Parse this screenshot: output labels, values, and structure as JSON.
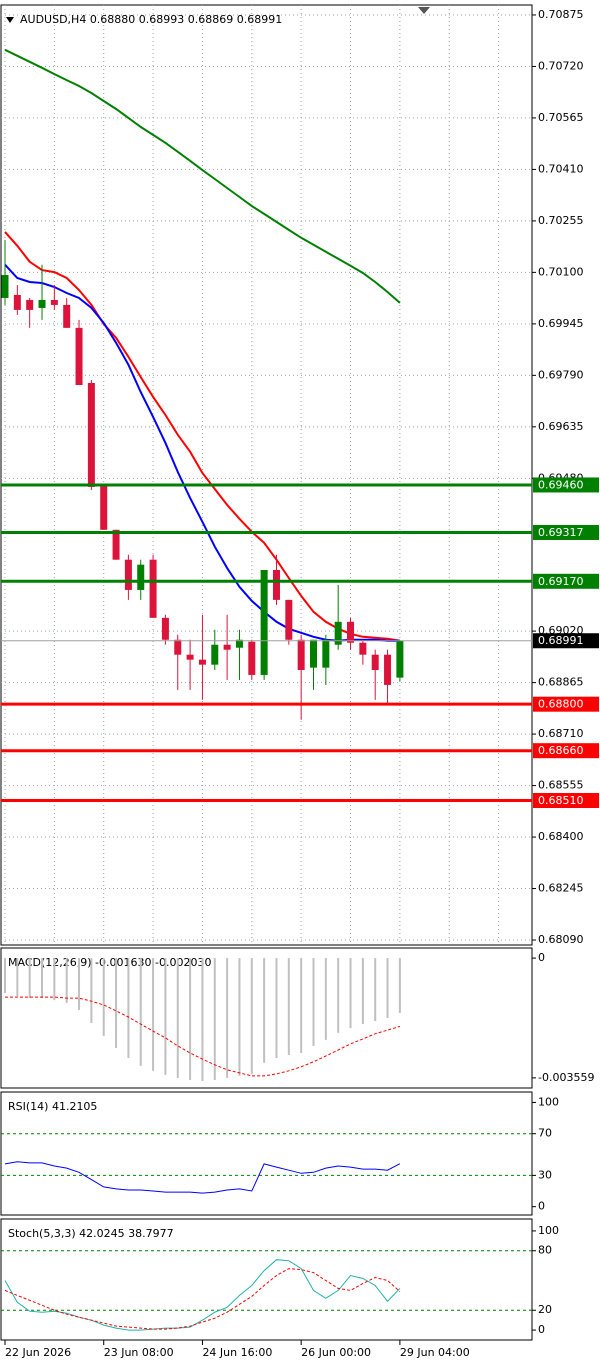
{
  "chart_data": [
    {
      "type": "candlestick",
      "title": "AUDUSD,H4  0.68880 0.68993 0.68869 0.68991",
      "x": [
        "22 Jun 2026",
        null,
        null,
        null,
        null,
        null,
        null,
        null,
        "23 Jun 08:00",
        null,
        null,
        null,
        null,
        null,
        null,
        null,
        "24 Jun 16:00",
        null,
        null,
        null,
        null,
        null,
        null,
        null,
        "26 Jun 00:00",
        null,
        null,
        null,
        null,
        null,
        null,
        null,
        "29 Jun 04:00"
      ],
      "open": [
        0.70023,
        0.70032,
        0.70017,
        0.69993,
        0.70017,
        0.70002,
        0.69933,
        0.69767,
        0.6946,
        0.69325,
        0.69235,
        0.69144,
        0.69235,
        0.6906,
        0.68994,
        0.68949,
        0.68934,
        0.68919,
        0.68979,
        0.6897,
        0.68988,
        0.68888,
        0.69204,
        0.69114,
        0.68994,
        0.6891,
        0.6891,
        0.68979,
        0.69048,
        0.68985,
        0.68949,
        0.68949,
        0.6888
      ],
      "high": [
        0.70198,
        0.70062,
        0.70023,
        0.70123,
        0.70062,
        0.70023,
        0.69957,
        0.69776,
        0.6946,
        0.69325,
        0.6925,
        0.69235,
        0.6925,
        0.69069,
        0.69009,
        0.68994,
        0.69069,
        0.69024,
        0.69069,
        0.69024,
        0.68994,
        0.69204,
        0.6925,
        0.69114,
        0.69009,
        0.68994,
        0.69009,
        0.69159,
        0.6906,
        0.68994,
        0.68964,
        0.68964,
        0.68993
      ],
      "low": [
        0.70002,
        0.69972,
        0.69933,
        0.69957,
        0.69987,
        0.69933,
        0.69761,
        0.69445,
        0.69325,
        0.69235,
        0.69114,
        0.69114,
        0.6906,
        0.68979,
        0.68843,
        0.68843,
        0.68813,
        0.68903,
        0.68873,
        0.68873,
        0.68873,
        0.68873,
        0.69099,
        0.68979,
        0.68753,
        0.68843,
        0.68858,
        0.68964,
        0.68964,
        0.68919,
        0.68813,
        0.68804,
        0.68869
      ],
      "close": [
        0.70092,
        0.69987,
        0.69987,
        0.70017,
        0.70002,
        0.69933,
        0.69761,
        0.69454,
        0.69325,
        0.69235,
        0.69144,
        0.6922,
        0.6906,
        0.68994,
        0.68949,
        0.68934,
        0.68919,
        0.68979,
        0.68964,
        0.68994,
        0.68888,
        0.69204,
        0.69114,
        0.68994,
        0.68903,
        0.68994,
        0.68994,
        0.69048,
        0.68985,
        0.68949,
        0.68903,
        0.68858,
        0.68991
      ],
      "up_color": "#008000",
      "down_color": "#dc143c",
      "lines": [
        {
          "color": "#008000",
          "values": [
            0.7077,
            0.70752,
            0.70734,
            0.70716,
            0.70697,
            0.70679,
            0.70661,
            0.7064,
            0.70616,
            0.70592,
            0.70565,
            0.70538,
            0.70514,
            0.7049,
            0.70463,
            0.70436,
            0.70408,
            0.70381,
            0.70354,
            0.70327,
            0.703,
            0.70276,
            0.70252,
            0.70228,
            0.70204,
            0.70183,
            0.70162,
            0.70141,
            0.7012,
            0.70098,
            0.70071,
            0.70041,
            0.70008
          ]
        },
        {
          "color": "#ff0000",
          "values": [
            0.70222,
            0.7018,
            0.70132,
            0.70107,
            0.70101,
            0.70083,
            0.70047,
            0.70002,
            0.69945,
            0.69903,
            0.69846,
            0.69785,
            0.69725,
            0.69671,
            0.69611,
            0.6956,
            0.69496,
            0.69448,
            0.694,
            0.69358,
            0.69319,
            0.69286,
            0.69235,
            0.6918,
            0.69126,
            0.69078,
            0.69048,
            0.69027,
            0.69012,
            0.69003,
            0.69,
            0.68997,
            0.68991
          ]
        },
        {
          "color": "#0000ff",
          "values": [
            0.70123,
            0.70083,
            0.70071,
            0.70068,
            0.70056,
            0.70038,
            0.70023,
            0.69993,
            0.69948,
            0.69888,
            0.69822,
            0.6974,
            0.69665,
            0.69587,
            0.69499,
            0.69421,
            0.69349,
            0.69274,
            0.6921,
            0.69153,
            0.69111,
            0.69078,
            0.69048,
            0.69027,
            0.69015,
            0.69003,
            0.68994,
            0.68991,
            0.68994,
            0.68994,
            0.68994,
            0.68991,
            0.68991
          ]
        }
      ],
      "ylim": [
        0.68075,
        0.70905
      ],
      "yticks": [
        0.70875,
        {
          "value": 0.7072,
          "label": "0.70720"
        },
        0.70565,
        {
          "value": 0.7041,
          "label": "0.70410"
        },
        0.70255,
        {
          "value": 0.701,
          "label": "0.70100"
        },
        0.69945,
        {
          "value": 0.6979,
          "label": "0.69790"
        },
        0.69635,
        {
          "value": 0.6948,
          "label": "0.69480"
        },
        {
          "value": 0.6902,
          "label": "0.69020"
        },
        0.68865,
        {
          "value": 0.6871,
          "label": "0.68710"
        },
        0.68555,
        {
          "value": 0.684,
          "label": "0.68400"
        },
        0.68245,
        {
          "value": 0.6809,
          "label": "0.68090"
        }
      ],
      "levels": [
        {
          "value": 0.6946,
          "label": "0.69460",
          "color": "#008000"
        },
        {
          "value": 0.69317,
          "label": "0.69317",
          "color": "#008000"
        },
        {
          "value": 0.6917,
          "label": "0.69170",
          "color": "#008000"
        },
        {
          "value": 0.688,
          "label": "0.68800",
          "color": "#ff0000"
        },
        {
          "value": 0.6866,
          "label": "0.68660",
          "color": "#ff0000"
        },
        {
          "value": 0.6851,
          "label": "0.68510",
          "color": "#ff0000"
        }
      ],
      "last_price": 0.68991,
      "grid": true
    },
    {
      "type": "macd",
      "title": "MACD(12,26,9) -0.001630 -0.002030",
      "color": "#c0c0c0",
      "values": [
        -0.00104,
        -0.00113,
        -0.00119,
        -0.00119,
        -0.00125,
        -0.00133,
        -0.00154,
        -0.00193,
        -0.00231,
        -0.00267,
        -0.00297,
        -0.0032,
        -0.00335,
        -0.00347,
        -0.00356,
        -0.00362,
        -0.00365,
        -0.00362,
        -0.00356,
        -0.0035,
        -0.00344,
        -0.00311,
        -0.00297,
        -0.00288,
        -0.00282,
        -0.00261,
        -0.00243,
        -0.00222,
        -0.00208,
        -0.00196,
        -0.00187,
        -0.00178,
        -0.00163
      ],
      "signal": {
        "color": "#ff0000",
        "values": [
          -0.00116,
          -0.00116,
          -0.00116,
          -0.00116,
          -0.00116,
          -0.00119,
          -0.00119,
          -0.00128,
          -0.00139,
          -0.00157,
          -0.00175,
          -0.00196,
          -0.00217,
          -0.00237,
          -0.00261,
          -0.00282,
          -0.003,
          -0.00317,
          -0.00332,
          -0.00341,
          -0.0035,
          -0.0035,
          -0.00344,
          -0.00335,
          -0.00323,
          -0.00308,
          -0.00291,
          -0.00273,
          -0.00255,
          -0.0024,
          -0.00225,
          -0.00214,
          -0.00203
        ]
      },
      "ylim": [
        -0.00386,
        0.0003
      ],
      "yticks": [
        0,
        -0.003559
      ]
    },
    {
      "type": "line",
      "title": "RSI(14) 41.2105",
      "series": [
        {
          "color": "#0000ff",
          "values": [
            41,
            43,
            42,
            42,
            39,
            37,
            33,
            26,
            19,
            17,
            16,
            16,
            15,
            14,
            14,
            14,
            13,
            14,
            16,
            17,
            15,
            41,
            38,
            35,
            32,
            33,
            37,
            39,
            38,
            36,
            36,
            35,
            41.2105
          ]
        }
      ],
      "ylim": [
        -8,
        110
      ],
      "yticks": [
        100,
        70,
        30,
        0
      ],
      "levels": [
        70,
        30
      ],
      "level_color": "#008000"
    },
    {
      "type": "line",
      "title": "Stoch(5,3,3) 42.0245 38.7977",
      "series": [
        {
          "color": "#20b2aa",
          "values": [
            50,
            28,
            19,
            18,
            19,
            17,
            13,
            10,
            5,
            2,
            0,
            0,
            1,
            2,
            2,
            3,
            10,
            18,
            23,
            35,
            45,
            60,
            71,
            70,
            62,
            40,
            32,
            40,
            55,
            52,
            45,
            29,
            42.0245
          ]
        },
        {
          "color": "#ff0000",
          "dashed": true,
          "values": [
            40,
            35,
            30,
            25,
            20,
            16,
            13,
            10,
            7,
            4,
            3,
            2,
            1,
            1,
            2,
            4,
            8,
            12,
            18,
            26,
            34,
            45,
            55,
            62,
            61,
            58,
            50,
            42,
            40,
            47,
            53,
            50,
            38.7977
          ]
        }
      ],
      "ylim": [
        -10,
        112
      ],
      "yticks": [
        100,
        80,
        20,
        0
      ],
      "levels": [
        80,
        20
      ],
      "level_color": "#008000"
    }
  ]
}
